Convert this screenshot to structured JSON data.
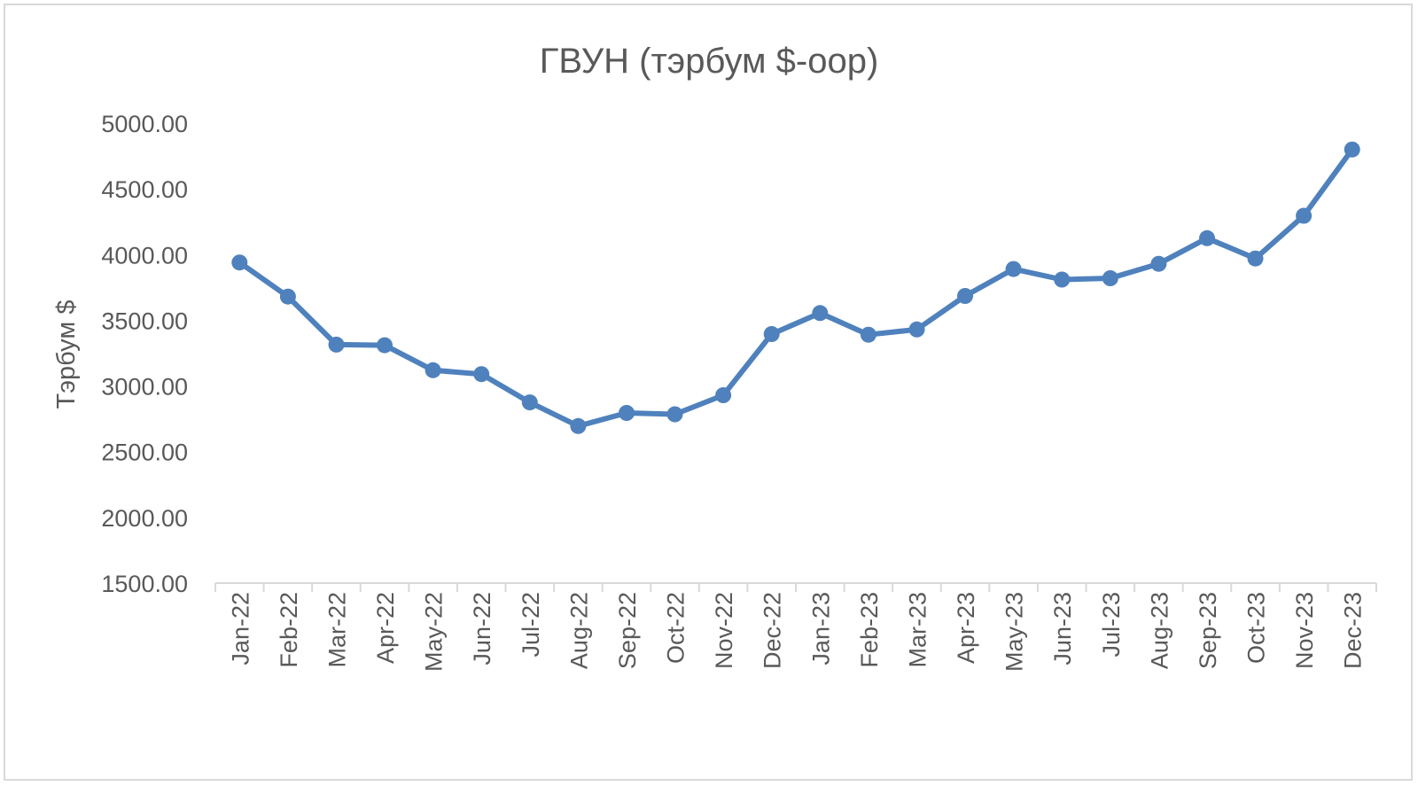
{
  "chart_data": {
    "type": "line",
    "title": "ГВУН (тэрбум $-оор)",
    "xlabel": "",
    "ylabel": "Тэрбум $",
    "categories": [
      "Jan-22",
      "Feb-22",
      "Mar-22",
      "Apr-22",
      "May-22",
      "Jun-22",
      "Jul-22",
      "Aug-22",
      "Sep-22",
      "Oct-22",
      "Nov-22",
      "Dec-22",
      "Jan-23",
      "Feb-23",
      "Mar-23",
      "Apr-23",
      "May-23",
      "Jun-23",
      "Jul-23",
      "Aug-23",
      "Sep-23",
      "Oct-23",
      "Nov-23",
      "Dec-23"
    ],
    "series": [
      {
        "values": [
          3940,
          3680,
          3315,
          3310,
          3120,
          3090,
          2875,
          2695,
          2795,
          2785,
          2930,
          3395,
          3555,
          3390,
          3430,
          3685,
          3890,
          3810,
          3820,
          3930,
          4125,
          3970,
          4295,
          4800
        ],
        "color": "#4f81bd"
      }
    ],
    "ylim": [
      1500,
      5000
    ],
    "yticks": [
      "5000.00",
      "4500.00",
      "4000.00",
      "3500.00",
      "3000.00",
      "2500.00",
      "2000.00",
      "1500.00"
    ],
    "ytick_values": [
      5000,
      4500,
      4000,
      3500,
      3000,
      2500,
      2000,
      1500
    ],
    "grid": false,
    "legend": "none"
  }
}
